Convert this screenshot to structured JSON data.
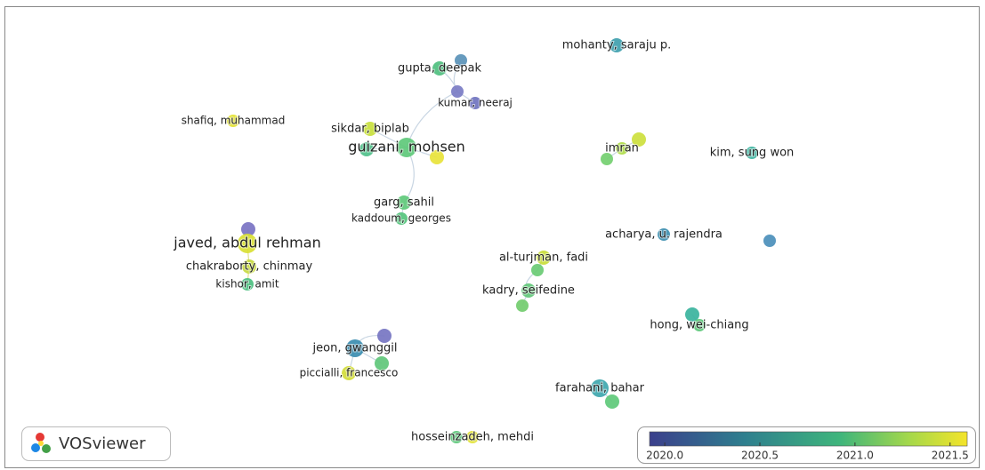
{
  "logo": "VOSviewer",
  "nodes": [
    {
      "label": "mohanty, saraju p.",
      "color": "#3f9fae"
    },
    {
      "label": "gupta, deepak",
      "color": "#4fbf7f"
    },
    {
      "color": "#5a93b8"
    },
    {
      "color": "#7a7cc4"
    },
    {
      "label": "kumar, neeraj",
      "color": "#6f73bf"
    },
    {
      "label": "shafiq, muhammad",
      "color": "#e3e232"
    },
    {
      "label": "sikdar, biplab",
      "color": "#c8df3c"
    },
    {
      "label": "guizani, mohsen",
      "color": "#5ec97a"
    },
    {
      "color": "#4fc08a"
    },
    {
      "color": "#e8e33a"
    },
    {
      "color": "#cde03d"
    },
    {
      "label": "imran",
      "color": "#b0dc4a"
    },
    {
      "color": "#74cf70"
    },
    {
      "label": "kim, sung won",
      "color": "#3eb3a0"
    },
    {
      "label": "garg, sahil",
      "color": "#5ec97a"
    },
    {
      "label": "kaddoum, georges",
      "color": "#56c47e"
    },
    {
      "color": "#7a73c3"
    },
    {
      "label": "javed, abdul rehman",
      "color": "#d9df33"
    },
    {
      "label": "chakraborty, chinmay",
      "color": "#c7d940"
    },
    {
      "label": "kishor, amit",
      "color": "#4cbf80"
    },
    {
      "label": "acharya, u. rajendra",
      "color": "#3e8fb0"
    },
    {
      "color": "#4b8fbb"
    },
    {
      "label": "al-turjman, fadi",
      "color": "#c9dd3a"
    },
    {
      "color": "#6acb74"
    },
    {
      "label": "kadry, seifedine",
      "color": "#62c87a"
    },
    {
      "color": "#72cc6e"
    },
    {
      "color": "#3ab39d"
    },
    {
      "label": "hong, wei-chiang",
      "color": "#5cc77a"
    },
    {
      "color": "#7675c2"
    },
    {
      "label": "jeon, gwanggil",
      "color": "#3b8db0"
    },
    {
      "color": "#5fc77a"
    },
    {
      "label": "piccialli, francesco",
      "color": "#d3dc3a"
    },
    {
      "label": "farahani, bahar",
      "color": "#3ea7ae"
    },
    {
      "color": "#5ec97a"
    },
    {
      "color": "#5cc77a"
    },
    {
      "label": "hosseinzadeh, mehdi",
      "color": "#e2e23a"
    }
  ],
  "colorbar": {
    "range": [
      2019.92,
      2021.59
    ],
    "ticks": [
      {
        "value": 2020,
        "label": "2020.0"
      },
      2020.5,
      {
        "value": 2021,
        "label": "2021.0"
      },
      2021.5
    ]
  }
}
